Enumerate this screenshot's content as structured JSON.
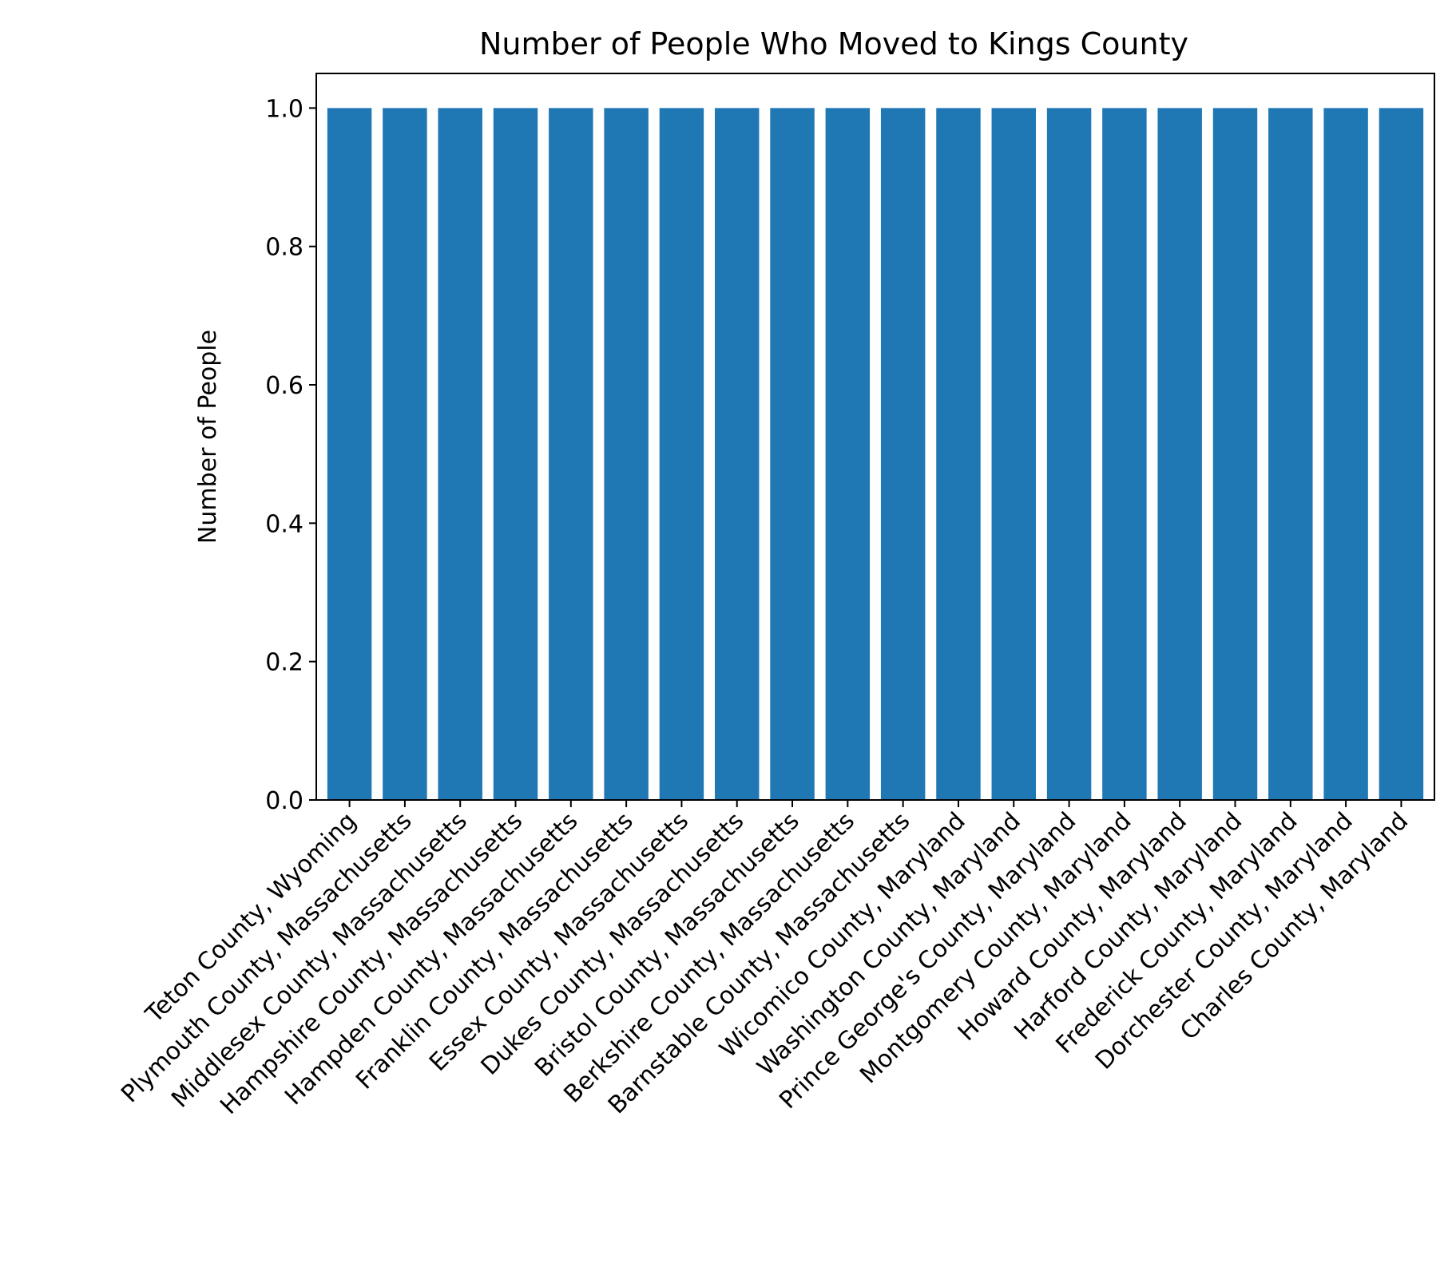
{
  "chart_data": {
    "type": "bar",
    "title": "Number of People Who Moved to Kings County",
    "xlabel": "",
    "ylabel": "Number of People",
    "categories": [
      "Teton County, Wyoming",
      "Plymouth County, Massachusetts",
      "Middlesex County, Massachusetts",
      "Hampshire County, Massachusetts",
      "Hampden County, Massachusetts",
      "Franklin County, Massachusetts",
      "Essex County, Massachusetts",
      "Dukes County, Massachusetts",
      "Bristol County, Massachusetts",
      "Berkshire County, Massachusetts",
      "Barnstable County, Massachusetts",
      "Wicomico County, Maryland",
      "Washington County, Maryland",
      "Prince George's County, Maryland",
      "Montgomery County, Maryland",
      "Howard County, Maryland",
      "Harford County, Maryland",
      "Frederick County, Maryland",
      "Dorchester County, Maryland",
      "Charles County, Maryland"
    ],
    "values": [
      1,
      1,
      1,
      1,
      1,
      1,
      1,
      1,
      1,
      1,
      1,
      1,
      1,
      1,
      1,
      1,
      1,
      1,
      1,
      1
    ],
    "ylim": [
      0,
      1.05
    ],
    "yticks": [
      0.0,
      0.2,
      0.4,
      0.6,
      0.8,
      1.0
    ],
    "ytick_labels": [
      "0.0",
      "0.2",
      "0.4",
      "0.6",
      "0.8",
      "1.0"
    ],
    "grid": false,
    "bar_color": "#1f77b4"
  }
}
